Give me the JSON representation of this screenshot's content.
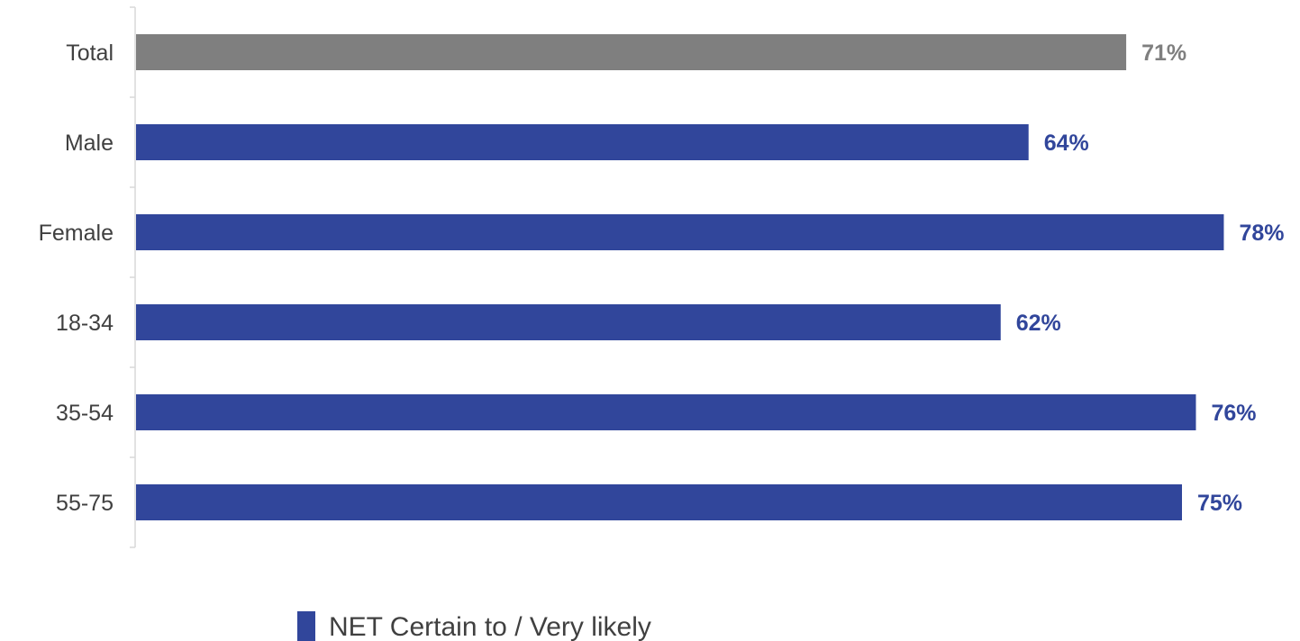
{
  "chart_data": {
    "type": "bar",
    "orientation": "horizontal",
    "categories": [
      "Total",
      "Male",
      "Female",
      "18-34",
      "35-54",
      "55-75"
    ],
    "series": [
      {
        "name": "NET Certain to / Very likely",
        "values": [
          71,
          64,
          78,
          62,
          76,
          75
        ]
      }
    ],
    "value_labels": [
      "71%",
      "64%",
      "78%",
      "62%",
      "76%",
      "75%"
    ],
    "xlim": [
      0,
      100
    ],
    "grid": false,
    "legend_position": "bottom",
    "colors": {
      "total_bar": "#7f7f7f",
      "series_bar": "#31469b",
      "axis": "#d9d9d9"
    }
  }
}
